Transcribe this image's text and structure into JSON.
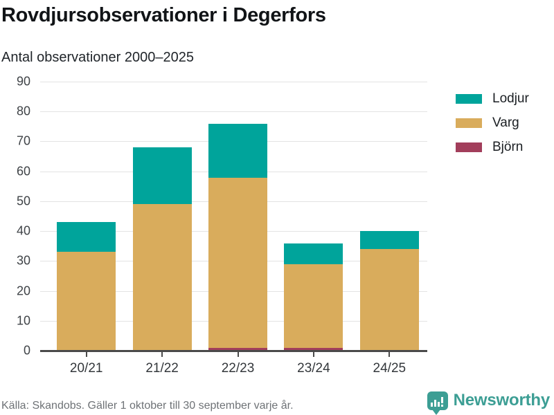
{
  "header": {
    "title": "Rovdjursobservationer i Degerfors",
    "subtitle": "Antal observationer 2000–2025"
  },
  "footer": {
    "source": "Källa: Skandobs. Gäller 1 oktober till 30 september varje år.",
    "brand": "Newsworthy"
  },
  "colors": {
    "lodjur": "#00a49b",
    "varg": "#d9ac5c",
    "bjorn": "#a23e5b",
    "axis": "#4a4a4a",
    "grid": "#e3e3e3",
    "brand_teal": "#3c9e94",
    "text": "#1a1e22",
    "muted": "#6e7276"
  },
  "chart_data": {
    "type": "bar",
    "stacked": true,
    "title": "Rovdjursobservationer i Degerfors",
    "subtitle": "Antal observationer 2000–2025",
    "categories": [
      "20/21",
      "21/22",
      "22/23",
      "23/24",
      "24/25"
    ],
    "series": [
      {
        "name": "Lodjur",
        "color": "#00a49b",
        "values": [
          10,
          19,
          18,
          7,
          6
        ]
      },
      {
        "name": "Varg",
        "color": "#d9ac5c",
        "values": [
          33,
          49,
          57,
          28,
          34
        ]
      },
      {
        "name": "Björn",
        "color": "#a23e5b",
        "values": [
          0,
          0,
          1,
          1,
          0
        ]
      }
    ],
    "totals": [
      43,
      68,
      76,
      36,
      40
    ],
    "stack_order_bottom_to_top": [
      "Björn",
      "Varg",
      "Lodjur"
    ],
    "ylim": [
      0,
      90
    ],
    "yticks": [
      0,
      10,
      20,
      30,
      40,
      50,
      60,
      70,
      80,
      90
    ],
    "xlabel": "",
    "ylabel": "",
    "grid": true,
    "legend_position": "right"
  }
}
